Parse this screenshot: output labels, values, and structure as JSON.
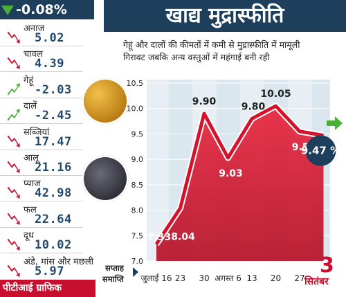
{
  "badge": {
    "text": "-0.08%"
  },
  "header": {
    "title": "खाद्य मुद्रास्फीति"
  },
  "subtitle": {
    "line1": "गेहूं और दालों की कीमतों में कमी से मुद्रास्फीति में मामूली",
    "line2": "गिरावट जबकि अन्य वस्तुओं में महंगाई बनी रही"
  },
  "items": [
    {
      "name": "अनाज",
      "value": "5.02",
      "dir": "down"
    },
    {
      "name": "चावल",
      "value": "4.39",
      "dir": "down"
    },
    {
      "name": "गेहूं",
      "value": "-2.03",
      "dir": "up"
    },
    {
      "name": "दालें",
      "value": "-2.45",
      "dir": "up"
    },
    {
      "name": "सब्जियां",
      "value": "17.47",
      "dir": "down"
    },
    {
      "name": "आलू",
      "value": "21.16",
      "dir": "down"
    },
    {
      "name": "प्याज",
      "value": "42.98",
      "dir": "down"
    },
    {
      "name": "फल",
      "value": "22.64",
      "dir": "down"
    },
    {
      "name": "दूध",
      "value": "10.02",
      "dir": "down"
    },
    {
      "name": "अंडे, मांस और मछली",
      "value": "5.97",
      "dir": "down"
    }
  ],
  "footer": {
    "credit": "पीटीआई ग्राफिक",
    "week_label1": "सप्ताह",
    "week_label2": "समाप्ति"
  },
  "colors": {
    "navy": "#1d3f5c",
    "red": "#c8102e",
    "green": "#4caf3a",
    "panel": "#dbe7ef"
  },
  "chart_data": {
    "type": "area",
    "x": [
      "जुलाई 16",
      "23",
      "30",
      "अगस्त 6",
      "13",
      "20",
      "27",
      "सितंबर 3"
    ],
    "x_ticks": [
      "जुलाई 16",
      "23",
      "30",
      "अगस्त 6",
      "13",
      "20",
      "27"
    ],
    "values": [
      7.33,
      8.04,
      9.9,
      9.03,
      9.8,
      10.05,
      9.55,
      9.47
    ],
    "data_labels": [
      "7.33",
      "8.04",
      "9.90",
      "9.03",
      "9.80",
      "10.05",
      "9.55",
      "9.47 %"
    ],
    "yticks": [
      "7.0",
      "7.5",
      "8.0",
      "8.5",
      "9.0",
      "9.5",
      "10.0",
      "10.5"
    ],
    "ylim": [
      7.0,
      10.5
    ],
    "sept_number": "3",
    "sept_label": "सितंबर"
  }
}
